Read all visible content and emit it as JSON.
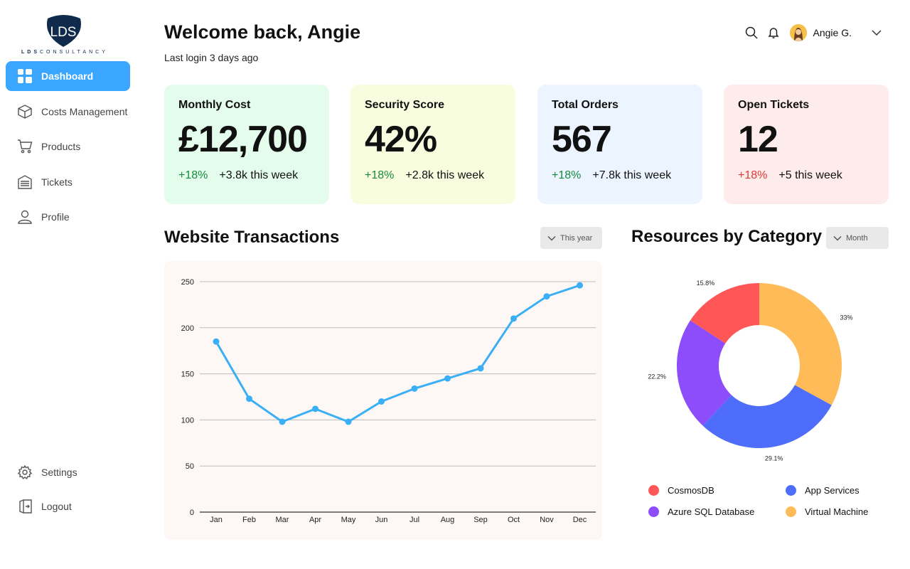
{
  "brand": {
    "logo_text_bold": "LDS",
    "logo_text": "CONSULTANCY",
    "badge_text": "LDS"
  },
  "nav": {
    "items": [
      {
        "label": "Dashboard",
        "icon": "grid-icon",
        "active": true
      },
      {
        "label": "Costs Management",
        "icon": "box-icon"
      },
      {
        "label": "Products",
        "icon": "cart-icon"
      },
      {
        "label": "Tickets",
        "icon": "ticket-icon"
      },
      {
        "label": "Profile",
        "icon": "user-icon"
      }
    ],
    "bottom": [
      {
        "label": "Settings",
        "icon": "gear-icon"
      },
      {
        "label": "Logout",
        "icon": "logout-icon"
      }
    ]
  },
  "header": {
    "welcome": "Welcome back, Angie",
    "last_login": "Last login 3 days ago",
    "user_name": "Angie G."
  },
  "cards": [
    {
      "title": "Monthly Cost",
      "value": "£12,700",
      "delta": "+18%",
      "delta_dir": "up",
      "note": "+3.8k this week",
      "bg": "#e3fcec"
    },
    {
      "title": "Security Score",
      "value": "42%",
      "delta": "+18%",
      "delta_dir": "up",
      "note": "+2.8k this week",
      "bg": "#f9fde0"
    },
    {
      "title": "Total Orders",
      "value": "567",
      "delta": "+18%",
      "delta_dir": "up",
      "note": "+7.8k this week",
      "bg": "#ebf4ff"
    },
    {
      "title": "Open Tickets",
      "value": "12",
      "delta": "+18%",
      "delta_dir": "down",
      "note": "+5 this week",
      "bg": "#fdeceb"
    }
  ],
  "transactions": {
    "title": "Website Transactions",
    "filter": "This year"
  },
  "resources": {
    "title": "Resources by Category",
    "filter": "Month"
  },
  "chart_data": [
    {
      "type": "line",
      "title": "Website Transactions",
      "categories": [
        "Jan",
        "Feb",
        "Mar",
        "Apr",
        "May",
        "Jun",
        "Jul",
        "Aug",
        "Sep",
        "Oct",
        "Nov",
        "Dec"
      ],
      "values": [
        185,
        123,
        98,
        112,
        98,
        120,
        134,
        145,
        156,
        210,
        234,
        246
      ],
      "ylim": [
        0,
        250
      ],
      "yticks": [
        0,
        50,
        100,
        150,
        200,
        250
      ],
      "color": "#3aaff5",
      "grid": true
    },
    {
      "type": "pie",
      "title": "Resources by Category",
      "labels": [
        "Virtual Machine",
        "App Services",
        "Azure SQL Database",
        "CosmosDB"
      ],
      "values": [
        33,
        29.1,
        22.2,
        15.8
      ],
      "value_labels": [
        "33%",
        "29.1%",
        "22.2%",
        "15.8%"
      ],
      "colors": [
        "#ffbb57",
        "#4d6dfa",
        "#8d4dfa",
        "#ff5757"
      ],
      "legend": [
        {
          "label": "CosmosDB",
          "color": "#ff5757"
        },
        {
          "label": "App Services",
          "color": "#4d6dfa"
        },
        {
          "label": "Azure SQL Database",
          "color": "#8d4dfa"
        },
        {
          "label": "Virtual Machine",
          "color": "#ffbb57"
        }
      ]
    }
  ]
}
